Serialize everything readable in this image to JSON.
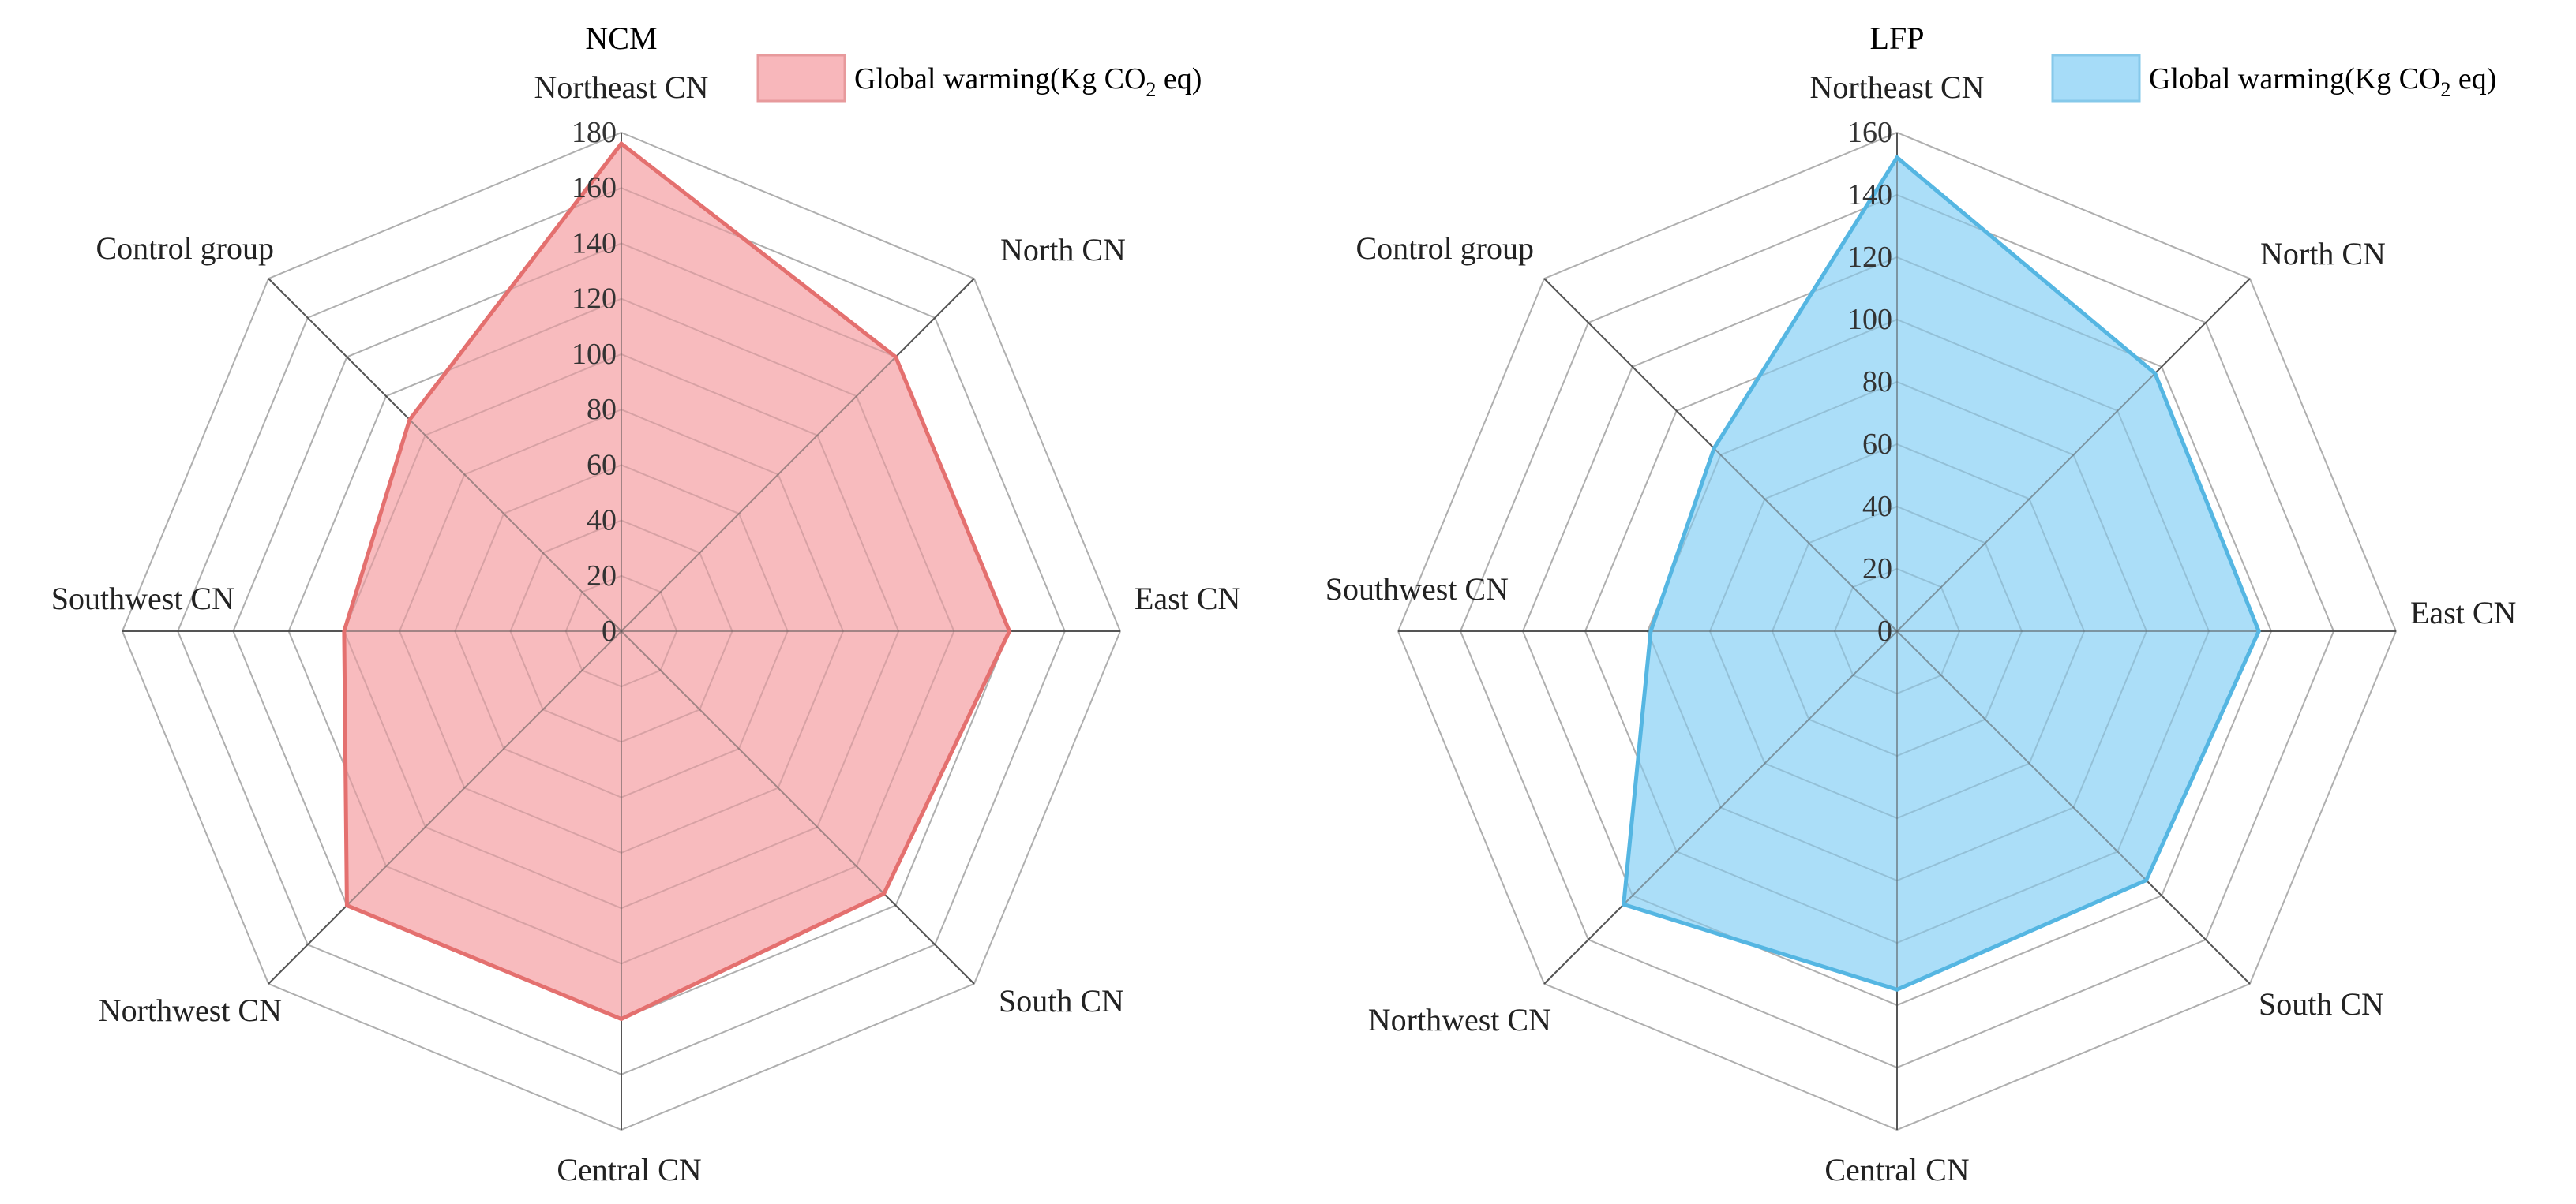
{
  "charts": [
    {
      "title": "NCM",
      "legend_label": "Global warming(Kg CO",
      "legend_sub": "2",
      "legend_suffix": " eq)",
      "fill_color": "#f8b7bb",
      "stroke_color": "#e4706f",
      "legend_fill": "#f8b7bb",
      "legend_stroke": "#e79a9c"
    },
    {
      "title": "LFP",
      "legend_label": "Global warming(Kg CO",
      "legend_sub": "2",
      "legend_suffix": " eq)",
      "fill_color": "#a6dcf8",
      "stroke_color": "#55b6e2",
      "legend_fill": "#a6dcf8",
      "legend_stroke": "#86c9ea"
    }
  ],
  "chart_data": [
    {
      "type": "radar",
      "title": "NCM",
      "categories": [
        "Northeast CN",
        "North CN",
        "East CN",
        "South CN",
        "Central CN",
        "Northwest CN",
        "Southwest CN",
        "Control group"
      ],
      "series": [
        {
          "name": "Global warming(Kg CO2 eq)",
          "values": [
            176,
            140,
            140,
            134,
            140,
            140,
            100,
            108
          ]
        }
      ],
      "rlim": [
        0,
        180
      ],
      "ticks": [
        0,
        20,
        40,
        60,
        80,
        100,
        120,
        140,
        160,
        180
      ],
      "grid": true,
      "legend_position": "top-right"
    },
    {
      "type": "radar",
      "title": "LFP",
      "categories": [
        "Northeast CN",
        "North CN",
        "East CN",
        "South CN",
        "Central CN",
        "Northwest CN",
        "Southwest CN",
        "Control group"
      ],
      "series": [
        {
          "name": "Global warming(Kg CO2 eq)",
          "values": [
            152,
            117,
            116,
            113,
            115,
            124,
            79,
            83
          ]
        }
      ],
      "rlim": [
        0,
        160
      ],
      "ticks": [
        0,
        20,
        40,
        60,
        80,
        100,
        120,
        140,
        160
      ],
      "grid": true,
      "legend_position": "top-right"
    }
  ]
}
